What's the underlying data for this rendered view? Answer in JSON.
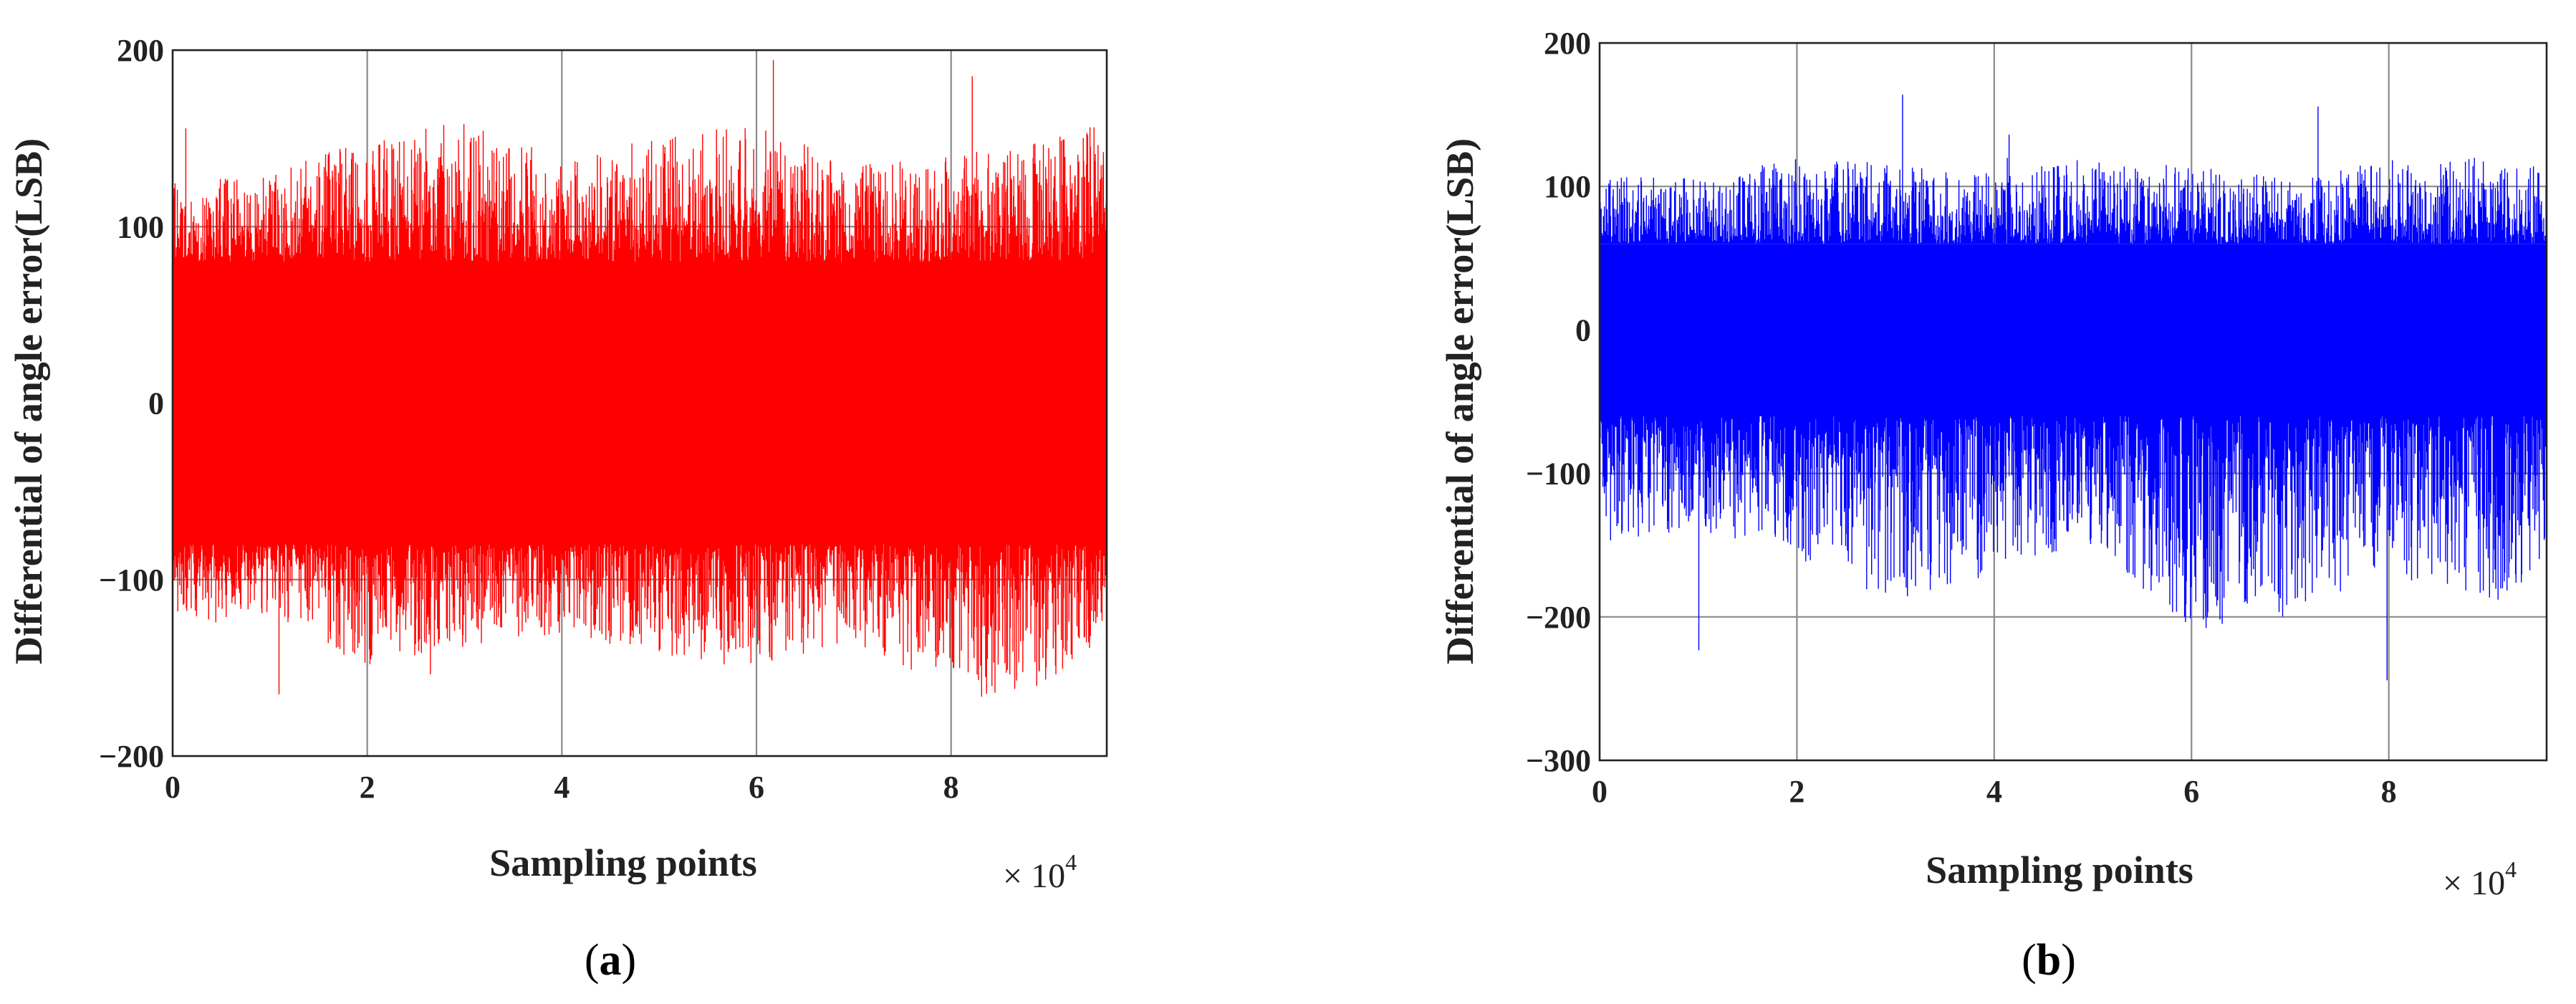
{
  "chart_data": [
    {
      "type": "line",
      "panel_label": "(a)",
      "panel_letter": "a",
      "xlabel": "Sampling points",
      "ylabel": "Differential of angle error(LSB)",
      "x_multiplier_text": "× 10",
      "x_multiplier_exp": "4",
      "xlim": [
        0,
        9.6
      ],
      "ylim": [
        -200,
        200
      ],
      "xticks": [
        0,
        2,
        4,
        6,
        8
      ],
      "xtick_labels": [
        "0",
        "2",
        "4",
        "6",
        "8"
      ],
      "yticks": [
        -200,
        -100,
        0,
        100,
        200
      ],
      "ytick_labels": [
        "−200",
        "−100",
        "0",
        "100",
        "200"
      ],
      "grid": true,
      "series": [
        {
          "color": "#ff0000",
          "n_points": 96000,
          "band_upper": 80,
          "band_lower": -80,
          "peak_max": 195,
          "peak_min": -178,
          "envelope_x": [
            0,
            1,
            2,
            3,
            4,
            5,
            6,
            7,
            8,
            9,
            9.6
          ],
          "envelope_upper": [
            125,
            130,
            150,
            160,
            140,
            150,
            160,
            135,
            140,
            150,
            160
          ],
          "envelope_lower": [
            -125,
            -120,
            -150,
            -140,
            -130,
            -145,
            -150,
            -135,
            -170,
            -160,
            -130
          ]
        }
      ]
    },
    {
      "type": "line",
      "panel_label": "(b)",
      "panel_letter": "b",
      "xlabel": "Sampling points",
      "ylabel": "Differential of angle error(LSB)",
      "x_multiplier_text": "× 10",
      "x_multiplier_exp": "4",
      "xlim": [
        0,
        9.6
      ],
      "ylim": [
        -300,
        200
      ],
      "xticks": [
        0,
        2,
        4,
        6,
        8
      ],
      "xtick_labels": [
        "0",
        "2",
        "4",
        "6",
        "8"
      ],
      "yticks": [
        -300,
        -200,
        -100,
        0,
        100,
        200
      ],
      "ytick_labels": [
        "−300",
        "−200",
        "−100",
        "0",
        "100",
        "200"
      ],
      "grid": true,
      "series": [
        {
          "color": "#0000ff",
          "n_points": 96000,
          "band_upper": 60,
          "band_lower": -60,
          "peak_max": 165,
          "peak_min": -268,
          "envelope_x": [
            0,
            1,
            2,
            3,
            4,
            5,
            6,
            7,
            8,
            9,
            9.6
          ],
          "envelope_upper": [
            110,
            105,
            120,
            115,
            110,
            120,
            115,
            105,
            120,
            120,
            115
          ],
          "envelope_lower": [
            -150,
            -140,
            -160,
            -190,
            -170,
            -150,
            -210,
            -200,
            -170,
            -200,
            -160
          ]
        }
      ]
    }
  ]
}
